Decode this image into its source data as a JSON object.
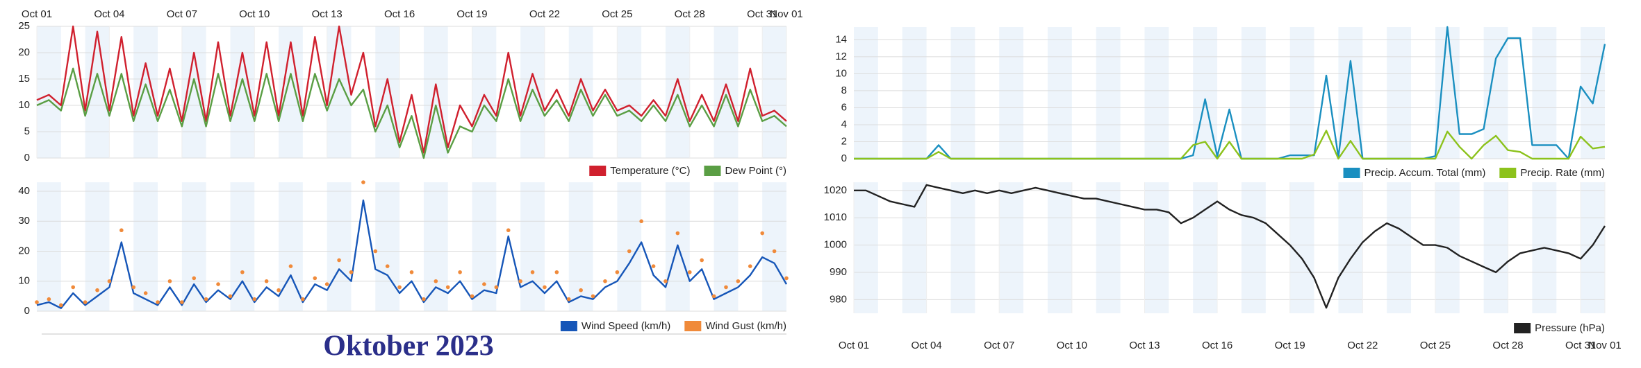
{
  "caption": "Oktober 2023",
  "chart_data": [
    {
      "type": "line",
      "legend": "lower right",
      "grid": true,
      "banded": true,
      "x": [
        0,
        0.5,
        1,
        1.5,
        2,
        2.5,
        3,
        3.5,
        4,
        4.5,
        5,
        5.5,
        6,
        6.5,
        7,
        7.5,
        8,
        8.5,
        9,
        9.5,
        10,
        10.5,
        11,
        11.5,
        12,
        12.5,
        13,
        13.5,
        14,
        14.5,
        15,
        15.5,
        16,
        16.5,
        17,
        17.5,
        18,
        18.5,
        19,
        19.5,
        20,
        20.5,
        21,
        21.5,
        22,
        22.5,
        23,
        23.5,
        24,
        24.5,
        25,
        25.5,
        26,
        26.5,
        27,
        27.5,
        28,
        28.5,
        29,
        29.5,
        30,
        30.5,
        31
      ],
      "xlim": [
        0,
        31
      ],
      "xticks": [
        {
          "value": 0,
          "label": "Oct 01"
        },
        {
          "value": 3,
          "label": "Oct 04"
        },
        {
          "value": 6,
          "label": "Oct 07"
        },
        {
          "value": 9,
          "label": "Oct 10"
        },
        {
          "value": 12,
          "label": "Oct 13"
        },
        {
          "value": 15,
          "label": "Oct 16"
        },
        {
          "value": 18,
          "label": "Oct 19"
        },
        {
          "value": 21,
          "label": "Oct 22"
        },
        {
          "value": 24,
          "label": "Oct 25"
        },
        {
          "value": 27,
          "label": "Oct 28"
        },
        {
          "value": 30,
          "label": "Oct 31"
        },
        {
          "value": 31,
          "label": "Nov 01"
        }
      ],
      "ylim": [
        0,
        25
      ],
      "yticks": [
        0,
        5,
        10,
        15,
        20,
        25
      ],
      "series": [
        {
          "name": "Temperature (°C)",
          "color": "#d0202e",
          "values": [
            11,
            12,
            10,
            25,
            9,
            24,
            9,
            23,
            8,
            18,
            8,
            17,
            7,
            20,
            7,
            22,
            8,
            20,
            8,
            22,
            8,
            22,
            8,
            23,
            10,
            25,
            12,
            20,
            6,
            15,
            3,
            12,
            1,
            14,
            2,
            10,
            6,
            12,
            8,
            20,
            8,
            16,
            9,
            13,
            8,
            15,
            9,
            13,
            9,
            10,
            8,
            11,
            8,
            15,
            7,
            12,
            7,
            14,
            7,
            17,
            8,
            9,
            7
          ]
        },
        {
          "name": "Dew Point (°)",
          "color": "#5a9e44",
          "values": [
            10,
            11,
            9,
            17,
            8,
            16,
            8,
            16,
            7,
            14,
            7,
            13,
            6,
            15,
            6,
            16,
            7,
            15,
            7,
            16,
            7,
            16,
            7,
            16,
            9,
            15,
            10,
            13,
            5,
            10,
            2,
            8,
            0,
            10,
            1,
            6,
            5,
            10,
            7,
            15,
            7,
            13,
            8,
            11,
            7,
            13,
            8,
            12,
            8,
            9,
            7,
            10,
            7,
            12,
            6,
            10,
            6,
            12,
            6,
            13,
            7,
            8,
            6
          ]
        }
      ]
    },
    {
      "type": "line",
      "legend": "lower right",
      "grid": true,
      "banded": true,
      "x": [
        0,
        0.5,
        1,
        1.5,
        2,
        2.5,
        3,
        3.5,
        4,
        4.5,
        5,
        5.5,
        6,
        6.5,
        7,
        7.5,
        8,
        8.5,
        9,
        9.5,
        10,
        10.5,
        11,
        11.5,
        12,
        12.5,
        13,
        13.5,
        14,
        14.5,
        15,
        15.5,
        16,
        16.5,
        17,
        17.5,
        18,
        18.5,
        19,
        19.5,
        20,
        20.5,
        21,
        21.5,
        22,
        22.5,
        23,
        23.5,
        24,
        24.5,
        25,
        25.5,
        26,
        26.5,
        27,
        27.5,
        28,
        28.5,
        29,
        29.5,
        30,
        30.5,
        31
      ],
      "xlim": [
        0,
        31
      ],
      "ylim": [
        0,
        43
      ],
      "yticks": [
        0,
        10,
        20,
        30,
        40
      ],
      "series": [
        {
          "name": "Wind Speed (km/h)",
          "color": "#1656b8",
          "values": [
            2,
            3,
            1,
            6,
            2,
            5,
            8,
            23,
            6,
            4,
            2,
            8,
            2,
            9,
            3,
            7,
            4,
            10,
            3,
            8,
            5,
            12,
            3,
            9,
            7,
            14,
            10,
            37,
            14,
            12,
            6,
            10,
            3,
            8,
            6,
            10,
            4,
            7,
            6,
            25,
            8,
            10,
            6,
            10,
            3,
            5,
            4,
            8,
            10,
            16,
            23,
            12,
            8,
            22,
            10,
            14,
            4,
            6,
            8,
            12,
            18,
            16,
            9
          ]
        },
        {
          "name": "Wind Gust (km/h)",
          "color": "#f08a3a",
          "mode": "markers",
          "values": [
            3,
            4,
            2,
            8,
            3,
            7,
            10,
            27,
            8,
            6,
            3,
            10,
            3,
            11,
            4,
            9,
            5,
            13,
            4,
            10,
            7,
            15,
            4,
            11,
            9,
            17,
            13,
            43,
            20,
            15,
            8,
            13,
            4,
            10,
            8,
            13,
            5,
            9,
            8,
            27,
            10,
            13,
            8,
            13,
            4,
            7,
            5,
            10,
            13,
            20,
            30,
            15,
            10,
            26,
            13,
            17,
            5,
            8,
            10,
            15,
            26,
            20,
            11
          ]
        }
      ]
    },
    {
      "type": "line",
      "legend": "lower right",
      "grid": true,
      "banded": true,
      "x": [
        0,
        0.5,
        1,
        1.5,
        2,
        2.5,
        3,
        3.5,
        4,
        4.5,
        5,
        5.5,
        6,
        6.5,
        7,
        7.5,
        8,
        8.5,
        9,
        9.5,
        10,
        10.5,
        11,
        11.5,
        12,
        12.5,
        13,
        13.5,
        14,
        14.5,
        15,
        15.5,
        16,
        16.5,
        17,
        17.5,
        18,
        18.5,
        19,
        19.5,
        20,
        20.5,
        21,
        21.5,
        22,
        22.5,
        23,
        23.5,
        24,
        24.5,
        25,
        25.5,
        26,
        26.5,
        27,
        27.5,
        28,
        28.5,
        29,
        29.5,
        30,
        30.5,
        31
      ],
      "xlim": [
        0,
        31
      ],
      "ylim": [
        0,
        15.5
      ],
      "yticks": [
        0,
        2,
        4,
        6,
        8,
        10,
        12,
        14
      ],
      "series": [
        {
          "name": "Precip. Accum. Total (mm)",
          "color": "#1a8fc0",
          "values": [
            0,
            0,
            0,
            0,
            0,
            0,
            0,
            1.6,
            0,
            0,
            0,
            0,
            0,
            0,
            0,
            0,
            0,
            0,
            0,
            0,
            0,
            0,
            0,
            0,
            0,
            0,
            0,
            0,
            0.4,
            7,
            0.3,
            5.8,
            0,
            0,
            0,
            0,
            0.4,
            0.4,
            0.4,
            9.8,
            0.2,
            11.5,
            0,
            0,
            0,
            0,
            0,
            0,
            0.3,
            15.5,
            2.9,
            2.9,
            3.5,
            11.8,
            14.2,
            14.2,
            1.6,
            1.6,
            1.6,
            0,
            8.5,
            6.5,
            13.5
          ]
        },
        {
          "name": "Precip. Rate (mm)",
          "color": "#8cc21c",
          "values": [
            0,
            0,
            0,
            0,
            0,
            0,
            0,
            0.8,
            0,
            0,
            0,
            0,
            0,
            0,
            0,
            0,
            0,
            0,
            0,
            0,
            0,
            0,
            0,
            0,
            0,
            0,
            0,
            0,
            1.6,
            2,
            0,
            2,
            0,
            0,
            0,
            0,
            0,
            0,
            0.5,
            3.3,
            0,
            2.1,
            0,
            0,
            0,
            0,
            0,
            0,
            0,
            3.2,
            1.4,
            0,
            1.6,
            2.7,
            1,
            0.8,
            0,
            0,
            0,
            0,
            2.6,
            1.2,
            1.4
          ]
        }
      ]
    },
    {
      "type": "line",
      "legend": "lower right",
      "grid": true,
      "banded": true,
      "x": [
        0,
        0.5,
        1,
        1.5,
        2,
        2.5,
        3,
        3.5,
        4,
        4.5,
        5,
        5.5,
        6,
        6.5,
        7,
        7.5,
        8,
        8.5,
        9,
        9.5,
        10,
        10.5,
        11,
        11.5,
        12,
        12.5,
        13,
        13.5,
        14,
        14.5,
        15,
        15.5,
        16,
        16.5,
        17,
        17.5,
        18,
        18.5,
        19,
        19.5,
        20,
        20.5,
        21,
        21.5,
        22,
        22.5,
        23,
        23.5,
        24,
        24.5,
        25,
        25.5,
        26,
        26.5,
        27,
        27.5,
        28,
        28.5,
        29,
        29.5,
        30,
        30.5,
        31
      ],
      "xlim": [
        0,
        31
      ],
      "xticks": [
        {
          "value": 0,
          "label": "Oct 01"
        },
        {
          "value": 3,
          "label": "Oct 04"
        },
        {
          "value": 6,
          "label": "Oct 07"
        },
        {
          "value": 9,
          "label": "Oct 10"
        },
        {
          "value": 12,
          "label": "Oct 13"
        },
        {
          "value": 15,
          "label": "Oct 16"
        },
        {
          "value": 18,
          "label": "Oct 19"
        },
        {
          "value": 21,
          "label": "Oct 22"
        },
        {
          "value": 24,
          "label": "Oct 25"
        },
        {
          "value": 27,
          "label": "Oct 28"
        },
        {
          "value": 30,
          "label": "Oct 31"
        },
        {
          "value": 31,
          "label": "Nov 01"
        }
      ],
      "ylim": [
        975,
        1023
      ],
      "yticks": [
        980,
        990,
        1000,
        1010,
        1020
      ],
      "series": [
        {
          "name": "Pressure (hPa)",
          "color": "#222222",
          "values": [
            1020,
            1020,
            1018,
            1016,
            1015,
            1014,
            1022,
            1021,
            1020,
            1019,
            1020,
            1019,
            1020,
            1019,
            1020,
            1021,
            1020,
            1019,
            1018,
            1017,
            1017,
            1016,
            1015,
            1014,
            1013,
            1013,
            1012,
            1008,
            1010,
            1013,
            1016,
            1013,
            1011,
            1010,
            1008,
            1004,
            1000,
            995,
            988,
            977,
            988,
            995,
            1001,
            1005,
            1008,
            1006,
            1003,
            1000,
            1000,
            999,
            996,
            994,
            992,
            990,
            994,
            997,
            998,
            999,
            998,
            997,
            995,
            1000,
            1007
          ]
        }
      ]
    }
  ]
}
